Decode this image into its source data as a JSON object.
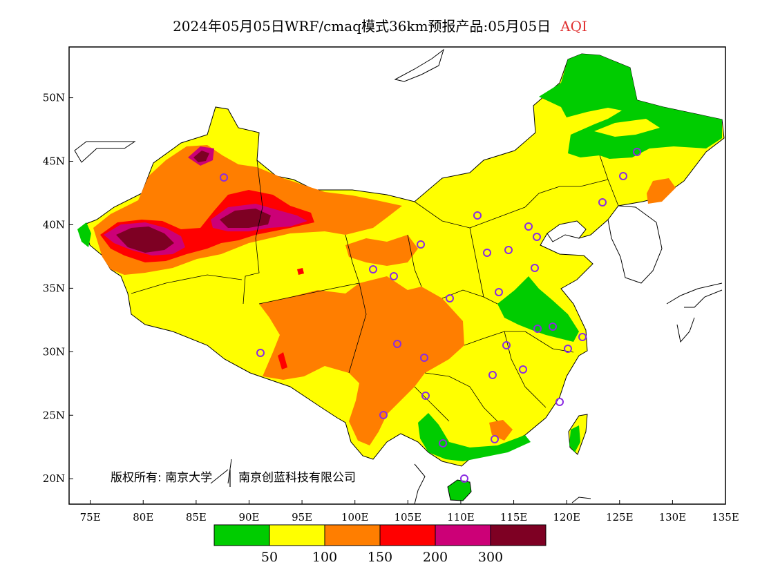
{
  "title": {
    "main": "2024年05月05日WRF/cmaq模式36km预报产品:05月05日",
    "variable": "AQI"
  },
  "map": {
    "lon_range": [
      73,
      135
    ],
    "lat_range": [
      18,
      54
    ],
    "lon_ticks": [
      {
        "value": 75,
        "label": "75E"
      },
      {
        "value": 80,
        "label": "80E"
      },
      {
        "value": 85,
        "label": "85E"
      },
      {
        "value": 90,
        "label": "90E"
      },
      {
        "value": 95,
        "label": "95E"
      },
      {
        "value": 100,
        "label": "100E"
      },
      {
        "value": 105,
        "label": "105E"
      },
      {
        "value": 110,
        "label": "110E"
      },
      {
        "value": 115,
        "label": "115E"
      },
      {
        "value": 120,
        "label": "120E"
      },
      {
        "value": 125,
        "label": "125E"
      },
      {
        "value": 130,
        "label": "130E"
      },
      {
        "value": 135,
        "label": "135E"
      }
    ],
    "lat_ticks": [
      {
        "value": 20,
        "label": "20N"
      },
      {
        "value": 25,
        "label": "25N"
      },
      {
        "value": 30,
        "label": "30N"
      },
      {
        "value": 35,
        "label": "35N"
      },
      {
        "value": 40,
        "label": "40N"
      },
      {
        "value": 45,
        "label": "45N"
      },
      {
        "value": 50,
        "label": "50N"
      }
    ],
    "city_marker_color": "#8a2be2"
  },
  "copyright": {
    "owner": "版权所有: 南京大学",
    "partner": "南京创蓝科技有限公司"
  },
  "legend": {
    "colors": [
      "#00cc00",
      "#ffff00",
      "#ff7e00",
      "#ff0000",
      "#cc0077",
      "#7e0023"
    ],
    "labels": [
      "50",
      "100",
      "150",
      "200",
      "300"
    ]
  }
}
